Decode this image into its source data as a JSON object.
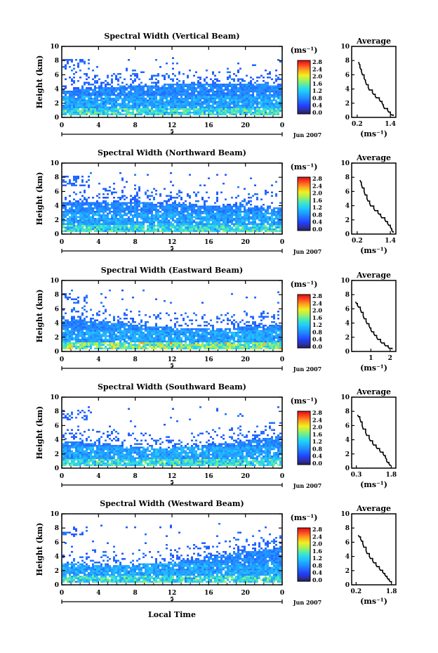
{
  "figure": {
    "xlabel_bottom": "Local Time",
    "colorbar_unit": "(ms⁻¹)",
    "avg_title": "Average",
    "avg_xlabel": "(ms⁻¹)",
    "ylabel": "Height (km)",
    "date_label": "Jun 2007",
    "day_label": "5",
    "colors": {
      "white": "#ffffff",
      "black": "#000000"
    }
  },
  "chart_data": [
    {
      "type": "heatmap",
      "title": "Spectral Width (Vertical Beam)",
      "xlabel": "",
      "ylabel": "Height (km)",
      "x_ticks": [
        "0",
        "4",
        "8",
        "12",
        "16",
        "20",
        "0"
      ],
      "y_ticks": [
        "0",
        "2",
        "4",
        "6",
        "8",
        "10"
      ],
      "xlim": [
        0,
        24
      ],
      "ylim": [
        0,
        10
      ],
      "colorbar_ticks": [
        "0.0",
        "0.4",
        "0.8",
        "1.2",
        "1.6",
        "2.0",
        "2.4",
        "2.8"
      ],
      "colorbar_range": [
        0,
        2.8
      ],
      "avg_profile": {
        "xlabel": "(ms⁻¹)",
        "x_ticks": [
          "0.2",
          "1.4"
        ],
        "x_tick_values": [
          0.2,
          1.4
        ],
        "xlim": [
          0,
          1.6
        ],
        "ylim": [
          0,
          10
        ],
        "y_ticks": [
          "0",
          "2",
          "4",
          "6",
          "8",
          "10"
        ],
        "x": [
          0.25,
          0.3,
          0.35,
          0.45,
          0.5,
          0.6,
          0.75,
          0.85,
          1.0,
          1.1,
          1.15,
          1.3,
          1.4,
          1.5
        ],
        "y": [
          7.8,
          7.0,
          6.5,
          5.5,
          5.0,
          4.2,
          3.5,
          3.0,
          2.5,
          2.0,
          1.5,
          1.0,
          0.5,
          0.2
        ]
      }
    },
    {
      "type": "heatmap",
      "title": "Spectral Width (Northward Beam)",
      "xlabel": "",
      "ylabel": "Height (km)",
      "x_ticks": [
        "0",
        "4",
        "8",
        "12",
        "16",
        "20",
        "0"
      ],
      "y_ticks": [
        "0",
        "2",
        "4",
        "6",
        "8",
        "10"
      ],
      "xlim": [
        0,
        24
      ],
      "ylim": [
        0,
        10
      ],
      "colorbar_ticks": [
        "0.0",
        "0.4",
        "0.8",
        "1.2",
        "1.6",
        "2.0",
        "2.4",
        "2.8"
      ],
      "colorbar_range": [
        0,
        2.8
      ],
      "avg_profile": {
        "xlabel": "(ms⁻¹)",
        "x_ticks": [
          "0.2",
          "1.4"
        ],
        "x_tick_values": [
          0.2,
          1.4
        ],
        "xlim": [
          0,
          1.6
        ],
        "ylim": [
          0,
          10
        ],
        "y_ticks": [
          "0",
          "2",
          "4",
          "6",
          "8",
          "10"
        ],
        "x": [
          0.3,
          0.35,
          0.45,
          0.55,
          0.65,
          0.8,
          0.95,
          1.05,
          1.2,
          1.3,
          1.4,
          1.45,
          1.5
        ],
        "y": [
          7.6,
          7.0,
          6.0,
          5.0,
          4.3,
          3.6,
          3.0,
          2.6,
          2.0,
          1.5,
          1.0,
          0.5,
          0.2
        ]
      }
    },
    {
      "type": "heatmap",
      "title": "Spectral Width (Eastward Beam)",
      "xlabel": "",
      "ylabel": "Height (km)",
      "x_ticks": [
        "0",
        "4",
        "8",
        "12",
        "16",
        "20",
        "0"
      ],
      "y_ticks": [
        "0",
        "2",
        "4",
        "6",
        "8",
        "10"
      ],
      "xlim": [
        0,
        24
      ],
      "ylim": [
        0,
        10
      ],
      "colorbar_ticks": [
        "0.0",
        "0.4",
        "0.8",
        "1.2",
        "1.6",
        "2.0",
        "2.4",
        "2.8"
      ],
      "colorbar_range": [
        0,
        2.8
      ],
      "avg_profile": {
        "xlabel": "(ms⁻¹)",
        "x_ticks": [
          "1",
          "2"
        ],
        "x_tick_values": [
          1,
          2
        ],
        "xlim": [
          0,
          2.3
        ],
        "ylim": [
          0,
          10
        ],
        "y_ticks": [
          "0",
          "2",
          "4",
          "6",
          "8",
          "10"
        ],
        "x": [
          0.2,
          0.3,
          0.45,
          0.6,
          0.75,
          0.9,
          1.0,
          1.15,
          1.3,
          1.5,
          1.7,
          1.9,
          2.1
        ],
        "y": [
          7.0,
          6.5,
          6.0,
          5.0,
          4.2,
          3.6,
          3.0,
          2.5,
          2.0,
          1.4,
          1.0,
          0.6,
          0.3
        ]
      }
    },
    {
      "type": "heatmap",
      "title": "Spectral Width (Southward Beam)",
      "xlabel": "",
      "ylabel": "Height (km)",
      "x_ticks": [
        "0",
        "4",
        "8",
        "12",
        "16",
        "20",
        "0"
      ],
      "y_ticks": [
        "0",
        "2",
        "4",
        "6",
        "8",
        "10"
      ],
      "xlim": [
        0,
        24
      ],
      "ylim": [
        0,
        10
      ],
      "colorbar_ticks": [
        "0.0",
        "0.4",
        "0.8",
        "1.2",
        "1.6",
        "2.0",
        "2.4",
        "2.8"
      ],
      "colorbar_range": [
        0,
        2.8
      ],
      "avg_profile": {
        "xlabel": "(ms⁻¹)",
        "x_ticks": [
          "0.3",
          "1.8"
        ],
        "x_tick_values": [
          0.3,
          1.8
        ],
        "xlim": [
          0.1,
          2.0
        ],
        "ylim": [
          0,
          10
        ],
        "y_ticks": [
          "0",
          "2",
          "4",
          "6",
          "8",
          "10"
        ],
        "x": [
          0.35,
          0.45,
          0.55,
          0.7,
          0.85,
          1.0,
          1.15,
          1.3,
          1.45,
          1.55,
          1.6,
          1.7,
          1.75
        ],
        "y": [
          7.5,
          7.0,
          6.0,
          5.0,
          4.2,
          3.5,
          3.0,
          2.5,
          2.0,
          1.5,
          1.0,
          0.6,
          0.3
        ]
      }
    },
    {
      "type": "heatmap",
      "title": "Spectral Width (Westward Beam)",
      "xlabel": "Local Time",
      "ylabel": "Height (km)",
      "x_ticks": [
        "0",
        "4",
        "8",
        "12",
        "16",
        "20",
        "0"
      ],
      "y_ticks": [
        "0",
        "2",
        "4",
        "6",
        "8",
        "10"
      ],
      "xlim": [
        0,
        24
      ],
      "ylim": [
        0,
        10
      ],
      "colorbar_ticks": [
        "0.0",
        "0.4",
        "0.8",
        "1.2",
        "1.6",
        "2.0",
        "2.4",
        "2.8"
      ],
      "colorbar_range": [
        0,
        2.8
      ],
      "avg_profile": {
        "xlabel": "(ms⁻¹)",
        "x_ticks": [
          "0.2",
          "1.8"
        ],
        "x_tick_values": [
          0.2,
          1.8
        ],
        "xlim": [
          0.0,
          2.0
        ],
        "ylim": [
          0,
          10
        ],
        "y_ticks": [
          "0",
          "2",
          "4",
          "6",
          "8",
          "10"
        ],
        "x": [
          0.3,
          0.4,
          0.5,
          0.65,
          0.8,
          0.95,
          1.1,
          1.25,
          1.4,
          1.5,
          1.6,
          1.7,
          1.8
        ],
        "y": [
          7.0,
          6.5,
          5.8,
          4.8,
          4.0,
          3.4,
          2.8,
          2.3,
          1.8,
          1.4,
          1.0,
          0.6,
          0.3
        ]
      }
    }
  ]
}
